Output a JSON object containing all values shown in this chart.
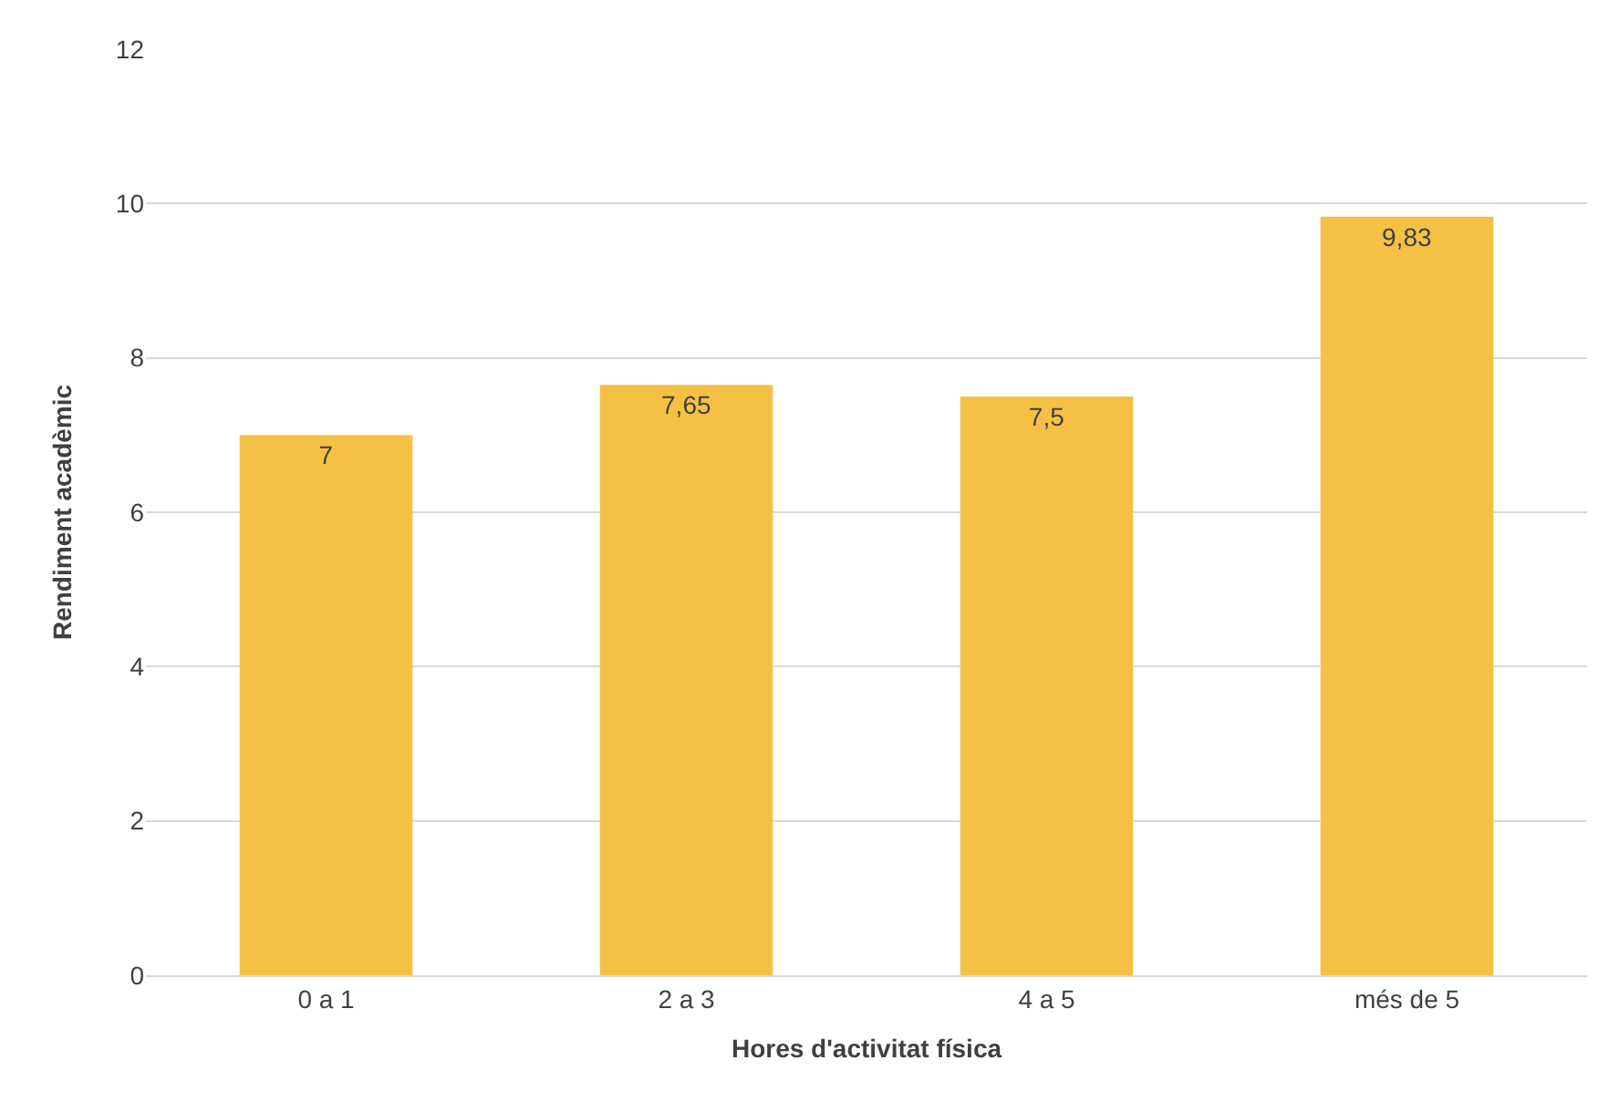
{
  "chart_data": {
    "type": "bar",
    "xlabel": "Hores d'activitat física",
    "ylabel": "Rendiment acadèmic",
    "categories": [
      "0 a 1",
      "2 a 3",
      "4 a 5",
      "més de 5"
    ],
    "values": [
      7,
      7.65,
      7.5,
      9.83
    ],
    "value_labels": [
      "7",
      "7,65",
      "7,5",
      "9,83"
    ],
    "color": "#f4c145",
    "ylim": [
      0,
      12
    ],
    "yticks": [
      0,
      2,
      4,
      6,
      8,
      10,
      12
    ],
    "grid": "y",
    "legend": false
  }
}
